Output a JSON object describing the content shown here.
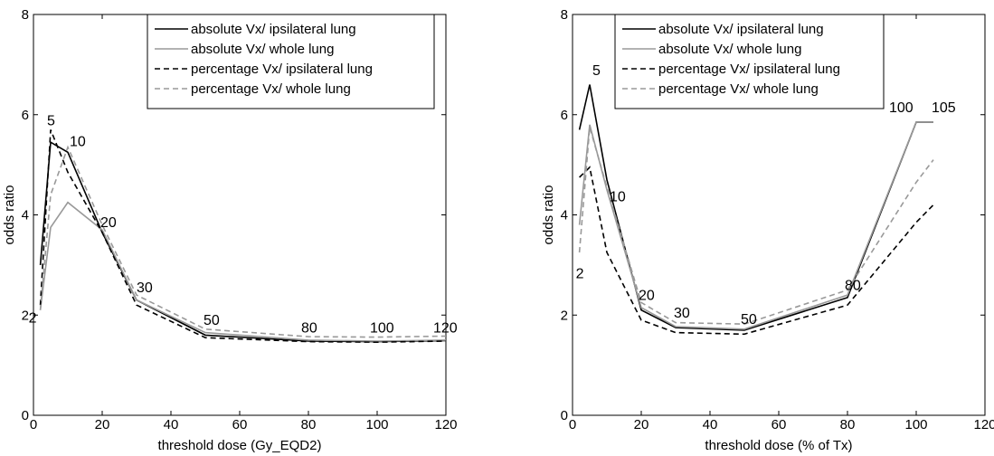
{
  "chart_data": [
    {
      "type": "line",
      "xlabel": "threshold dose (Gy_EQD2)",
      "ylabel": "odds ratio",
      "xlim": [
        0,
        120
      ],
      "ylim": [
        0,
        8
      ],
      "xticks": [
        0,
        20,
        40,
        60,
        80,
        100,
        120
      ],
      "yticks": [
        0,
        2,
        4,
        6,
        8
      ],
      "legend_position": "top-right",
      "series": [
        {
          "name": "absolute Vx/ ipsilateral lung",
          "color": "#000000",
          "dash": "solid",
          "x": [
            2,
            5,
            10,
            20,
            30,
            50,
            80,
            100,
            120
          ],
          "y": [
            3.0,
            5.45,
            5.25,
            3.65,
            2.3,
            1.6,
            1.48,
            1.47,
            1.49
          ]
        },
        {
          "name": "absolute Vx/ whole lung",
          "color": "#999999",
          "dash": "solid",
          "x": [
            2,
            5,
            10,
            20,
            30,
            50,
            80,
            100,
            120
          ],
          "y": [
            2.1,
            3.75,
            4.25,
            3.7,
            2.3,
            1.65,
            1.5,
            1.48,
            1.5
          ]
        },
        {
          "name": "percentage Vx/ ipsilateral lung",
          "color": "#000000",
          "dash": "dashed",
          "x": [
            2,
            5,
            10,
            20,
            30,
            50,
            80,
            100,
            120
          ],
          "y": [
            2.2,
            5.7,
            4.85,
            3.65,
            2.2,
            1.55,
            1.47,
            1.46,
            1.48
          ]
        },
        {
          "name": "percentage Vx/ whole lung",
          "color": "#999999",
          "dash": "dashed",
          "x": [
            2,
            5,
            10,
            20,
            30,
            50,
            80,
            100,
            120
          ],
          "y": [
            2.1,
            4.4,
            5.35,
            3.8,
            2.4,
            1.72,
            1.57,
            1.56,
            1.58
          ]
        }
      ],
      "annotations": [
        {
          "text": "2",
          "x": 2,
          "y": 2.0
        },
        {
          "text": "5",
          "x": 5,
          "y": 5.7
        },
        {
          "text": "10",
          "x": 10,
          "y": 5.3
        },
        {
          "text": "20",
          "x": 20,
          "y": 3.7
        },
        {
          "text": "30",
          "x": 30,
          "y": 2.4
        },
        {
          "text": "50",
          "x": 50,
          "y": 1.75
        },
        {
          "text": "80",
          "x": 80,
          "y": 1.6
        },
        {
          "text": "100",
          "x": 100,
          "y": 1.6
        },
        {
          "text": "120",
          "x": 120,
          "y": 1.6
        }
      ]
    },
    {
      "type": "line",
      "xlabel": "threshold dose (% of Tx)",
      "ylabel": "odds ratio",
      "xlim": [
        0,
        120
      ],
      "ylim": [
        0,
        8
      ],
      "xticks": [
        0,
        20,
        40,
        60,
        80,
        100,
        120
      ],
      "yticks": [
        0,
        2,
        4,
        6,
        8
      ],
      "legend_position": "top-right",
      "series": [
        {
          "name": "absolute Vx/ ipsilateral lung",
          "color": "#000000",
          "dash": "solid",
          "x": [
            2,
            5,
            10,
            20,
            30,
            50,
            80,
            100,
            105
          ],
          "y": [
            5.7,
            6.6,
            4.7,
            2.1,
            1.75,
            1.7,
            2.35,
            5.85,
            5.85
          ]
        },
        {
          "name": "absolute Vx/ whole lung",
          "color": "#999999",
          "dash": "solid",
          "x": [
            2,
            5,
            10,
            20,
            30,
            50,
            80,
            100,
            105
          ],
          "y": [
            3.8,
            5.8,
            4.5,
            2.15,
            1.77,
            1.72,
            2.4,
            5.85,
            5.85
          ]
        },
        {
          "name": "percentage Vx/ ipsilateral lung",
          "color": "#000000",
          "dash": "dashed",
          "x": [
            2,
            5,
            10,
            20,
            30,
            50,
            80,
            100,
            105
          ],
          "y": [
            4.75,
            4.95,
            3.25,
            1.9,
            1.65,
            1.62,
            2.2,
            3.85,
            4.2
          ]
        },
        {
          "name": "percentage Vx/ whole lung",
          "color": "#999999",
          "dash": "dashed",
          "x": [
            2,
            5,
            10,
            20,
            30,
            50,
            80,
            100,
            105
          ],
          "y": [
            3.25,
            5.75,
            4.55,
            2.25,
            1.85,
            1.82,
            2.5,
            4.65,
            5.1
          ]
        }
      ],
      "annotations": [
        {
          "text": "2",
          "x": 2,
          "y": 3.1
        },
        {
          "text": "5",
          "x": 5,
          "y": 6.75
        },
        {
          "text": "10",
          "x": 10,
          "y": 4.6
        },
        {
          "text": "20",
          "x": 20,
          "y": 2.25
        },
        {
          "text": "30",
          "x": 30,
          "y": 1.9
        },
        {
          "text": "50",
          "x": 50,
          "y": 1.75
        },
        {
          "text": "80",
          "x": 80,
          "y": 2.45
        },
        {
          "text": "100",
          "x": 100,
          "y": 6.0
        },
        {
          "text": "105",
          "x": 105,
          "y": 6.0
        }
      ]
    }
  ]
}
